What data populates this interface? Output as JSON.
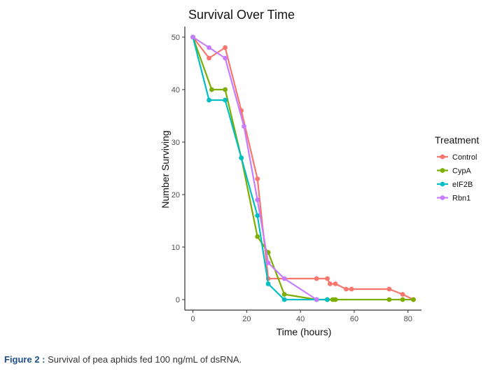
{
  "chart_data": {
    "type": "line",
    "title": "Survival Over Time",
    "xlabel": "Time (hours)",
    "ylabel": "Number Surviving",
    "xlim": [
      -3,
      85
    ],
    "ylim": [
      -2,
      52
    ],
    "x_ticks": [
      0,
      20,
      40,
      60,
      80
    ],
    "y_ticks": [
      0,
      10,
      20,
      30,
      40,
      50
    ],
    "grid": false,
    "legend_title": "Treatment",
    "legend_position": "right",
    "series": [
      {
        "name": "Control",
        "color": "#F8766D",
        "x": [
          0,
          6,
          12,
          18,
          24,
          28,
          46,
          50,
          51,
          53,
          57,
          59,
          73,
          78,
          82
        ],
        "y": [
          50,
          46,
          48,
          36,
          23,
          4,
          4,
          4,
          3,
          3,
          2,
          2,
          2,
          1,
          0
        ]
      },
      {
        "name": "CypA",
        "color": "#7CAE00",
        "x": [
          0,
          7,
          12,
          18,
          24,
          28,
          34,
          46,
          50,
          52,
          53,
          73,
          78,
          82
        ],
        "y": [
          50,
          40,
          40,
          27,
          12,
          9,
          1,
          0,
          0,
          0,
          0,
          0,
          0,
          0
        ]
      },
      {
        "name": "eIF2B",
        "color": "#00BFC4",
        "x": [
          0,
          6,
          12,
          18,
          24,
          28,
          34,
          46,
          50
        ],
        "y": [
          50,
          38,
          38,
          27,
          16,
          3,
          0,
          0,
          0
        ]
      },
      {
        "name": "Rbn1",
        "color": "#C77CFF",
        "x": [
          0,
          6,
          12,
          19,
          24,
          28,
          34,
          46
        ],
        "y": [
          50,
          48,
          46,
          33,
          19,
          7,
          4,
          0
        ]
      }
    ]
  },
  "caption": {
    "label": "Figure 2 :",
    "text": " Survival of pea aphids fed 100 ng/mL of dsRNA."
  }
}
